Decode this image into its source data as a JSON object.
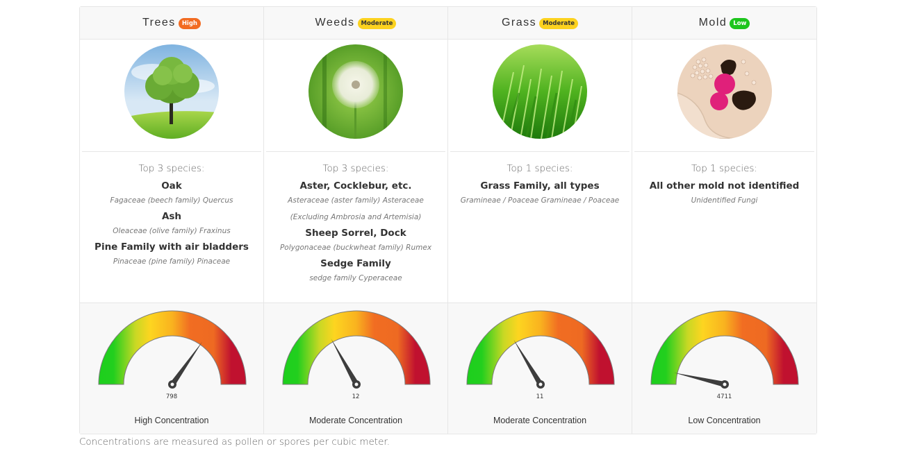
{
  "colors": {
    "high": "#f26b21",
    "moderate": "#fcd21f",
    "low": "#1dc51d",
    "gauge_green": "#1dcf1d",
    "gauge_yellow": "#fdd520",
    "gauge_orange": "#f16d22",
    "gauge_red": "#c0112f"
  },
  "categories": [
    {
      "title": "Trees",
      "level": "High",
      "level_color": "#f26b21",
      "level_text_color": "#ffffff",
      "image": "tree-image",
      "species_heading": "Top 3 species:",
      "species": [
        {
          "name": "Oak",
          "latin": [
            "Fagaceae (beech family) Quercus"
          ]
        },
        {
          "name": "Ash",
          "latin": [
            "Oleaceae (olive family) Fraxinus"
          ]
        },
        {
          "name": "Pine Family with air bladders",
          "latin": [
            "Pinaceae (pine family) Pinaceae"
          ]
        }
      ],
      "gauge": {
        "value": "798",
        "angle": 55
      },
      "concentration_label": "High Concentration"
    },
    {
      "title": "Weeds",
      "level": "Moderate",
      "level_color": "#fcd21f",
      "level_text_color": "#333333",
      "image": "dandelion-image",
      "species_heading": "Top 3 species:",
      "species": [
        {
          "name": "Aster, Cocklebur, etc.",
          "latin": [
            "Asteraceae (aster family) Asteraceae",
            "(Excluding Ambrosia and Artemisia)"
          ]
        },
        {
          "name": "Sheep Sorrel, Dock",
          "latin": [
            "Polygonaceae (buckwheat family) Rumex"
          ]
        },
        {
          "name": "Sedge Family",
          "latin": [
            "sedge family Cyperaceae"
          ]
        }
      ],
      "gauge": {
        "value": "12",
        "angle": 119
      },
      "concentration_label": "Moderate Concentration"
    },
    {
      "title": "Grass",
      "level": "Moderate",
      "level_color": "#fcd21f",
      "level_text_color": "#333333",
      "image": "grass-image",
      "species_heading": "Top 1 species:",
      "species": [
        {
          "name": "Grass Family, all types",
          "latin": [
            "Gramineae / Poaceae Gramineae / Poaceae"
          ]
        }
      ],
      "gauge": {
        "value": "11",
        "angle": 121
      },
      "concentration_label": "Moderate Concentration"
    },
    {
      "title": "Mold",
      "level": "Low",
      "level_color": "#1dc51d",
      "level_text_color": "#ffffff",
      "image": "mold-image",
      "species_heading": "Top 1 species:",
      "species": [
        {
          "name": "All other mold not identified",
          "latin": [
            "Unidentified Fungi"
          ]
        }
      ],
      "gauge": {
        "value": "4711",
        "angle": 167
      },
      "concentration_label": "Low Concentration"
    }
  ],
  "footnote": "Concentrations are measured as pollen or spores per cubic meter."
}
